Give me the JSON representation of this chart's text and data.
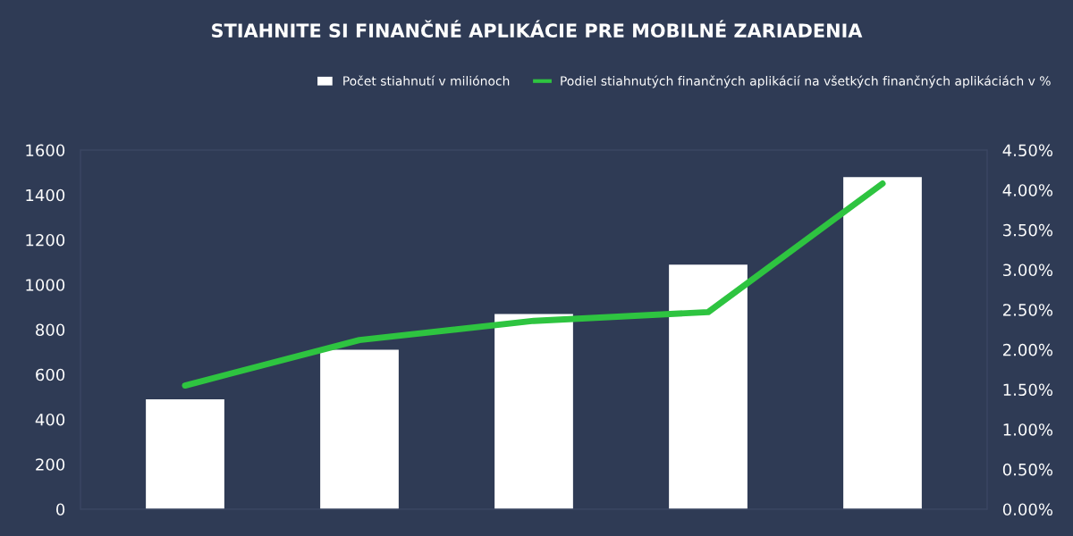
{
  "chart_data": {
    "type": "bar",
    "title": "STIAHNITE SI FINANČNÉ APLIKÁCIE PRE MOBILNÉ ZARIADENIA",
    "categories": [
      null,
      null,
      null,
      null,
      null
    ],
    "series": [
      {
        "name": "Počet stiahnutí v miliónoch",
        "color": "#ffffff",
        "values": [
          490,
          710,
          870,
          1090,
          1480
        ]
      },
      {
        "name": "Podiel stiahnutých finančných aplikácií na všetkých finančných aplikáciách v %",
        "type": "line",
        "axis": "y2",
        "color": "#2ec440",
        "values": [
          1.55,
          2.12,
          2.36,
          2.47,
          4.08
        ]
      }
    ],
    "ylim": [
      0,
      1600
    ],
    "yticks": [
      0,
      200,
      400,
      600,
      800,
      1000,
      1200,
      1400,
      1600
    ],
    "y2lim": [
      0,
      4.5
    ],
    "y2ticks": [
      {
        "value": 0,
        "label": "0.00%"
      },
      {
        "value": 0.5,
        "label": "0.50%"
      },
      {
        "value": 1,
        "label": "1.00%"
      },
      {
        "value": 1.5,
        "label": "1.50%"
      },
      {
        "value": 2,
        "label": "2.00%"
      },
      {
        "value": 2.5,
        "label": "2.50%"
      },
      {
        "value": 3,
        "label": "3.00%"
      },
      {
        "value": 3.5,
        "label": "3.50%"
      },
      {
        "value": 4,
        "label": "4.00%"
      },
      {
        "value": 4.5,
        "label": "4.50%"
      }
    ],
    "grid": false,
    "legend": "top right",
    "line_style": "solid",
    "marker": "none"
  }
}
